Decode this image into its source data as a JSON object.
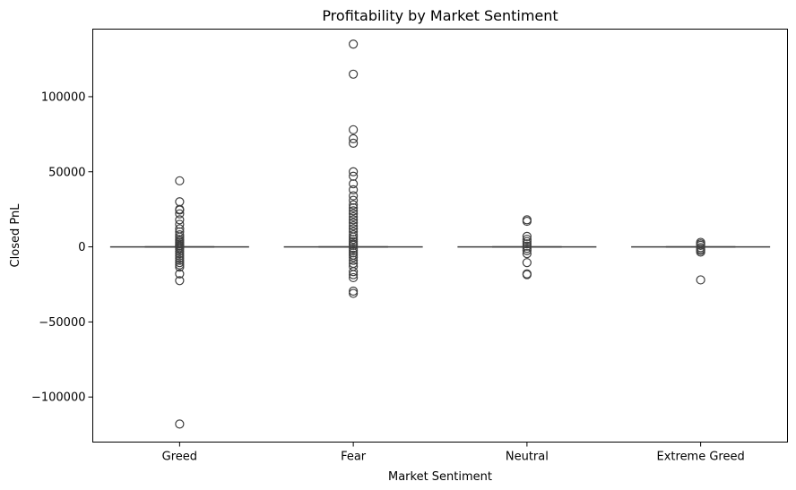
{
  "chart_data": {
    "type": "box",
    "title": "Profitability by Market Sentiment",
    "xlabel": "Market Sentiment",
    "ylabel": "Closed PnL",
    "categories": [
      "Greed",
      "Fear",
      "Neutral",
      "Extreme Greed"
    ],
    "ylim": [
      -130000,
      145000
    ],
    "yticks": [
      -100000,
      -50000,
      0,
      50000,
      100000
    ],
    "ytick_labels": [
      "−100000",
      "−50000",
      "0",
      "50000",
      "100000"
    ],
    "grid": false,
    "legend": "none",
    "colors": {
      "box_line": "#3f3f3f",
      "axis": "#000000"
    },
    "boxes": [
      {
        "category": "Greed",
        "whisker_low": 0,
        "q1": 0,
        "median": 0,
        "q3": 0,
        "whisker_high": 0,
        "outliers": [
          44000,
          30000,
          25000,
          24500,
          22000,
          18000,
          15000,
          12000,
          10000,
          8000,
          6500,
          5000,
          4000,
          3000,
          2000,
          1000,
          500,
          -500,
          -1500,
          -3000,
          -4500,
          -6000,
          -7500,
          -9000,
          -10500,
          -12000,
          -13500,
          -18000,
          -22500,
          -118000
        ]
      },
      {
        "category": "Fear",
        "whisker_low": 0,
        "q1": 0,
        "median": 0,
        "q3": 0,
        "whisker_high": 0,
        "outliers": [
          135000,
          115000,
          78000,
          72000,
          69000,
          50000,
          47000,
          42000,
          38000,
          34000,
          31000,
          28000,
          26000,
          24000,
          22000,
          20000,
          18000,
          16000,
          14000,
          12000,
          10000,
          8000,
          6500,
          5000,
          3500,
          2000,
          1000,
          -1000,
          -2500,
          -4000,
          -5500,
          -7000,
          -9000,
          -11000,
          -13000,
          -16500,
          -18500,
          -20500,
          -29500,
          -31000
        ]
      },
      {
        "category": "Neutral",
        "whisker_low": 0,
        "q1": 0,
        "median": 0,
        "q3": 0,
        "whisker_high": 0,
        "outliers": [
          18000,
          17000,
          7000,
          5000,
          3500,
          2000,
          500,
          -1000,
          -2500,
          -4500,
          -10500,
          -18000,
          -18500
        ]
      },
      {
        "category": "Extreme Greed",
        "whisker_low": 0,
        "q1": 0,
        "median": 0,
        "q3": 0,
        "whisker_high": 0,
        "outliers": [
          3000,
          2000,
          1000,
          -500,
          -1500,
          -2500,
          -3500,
          -22000
        ]
      }
    ]
  }
}
